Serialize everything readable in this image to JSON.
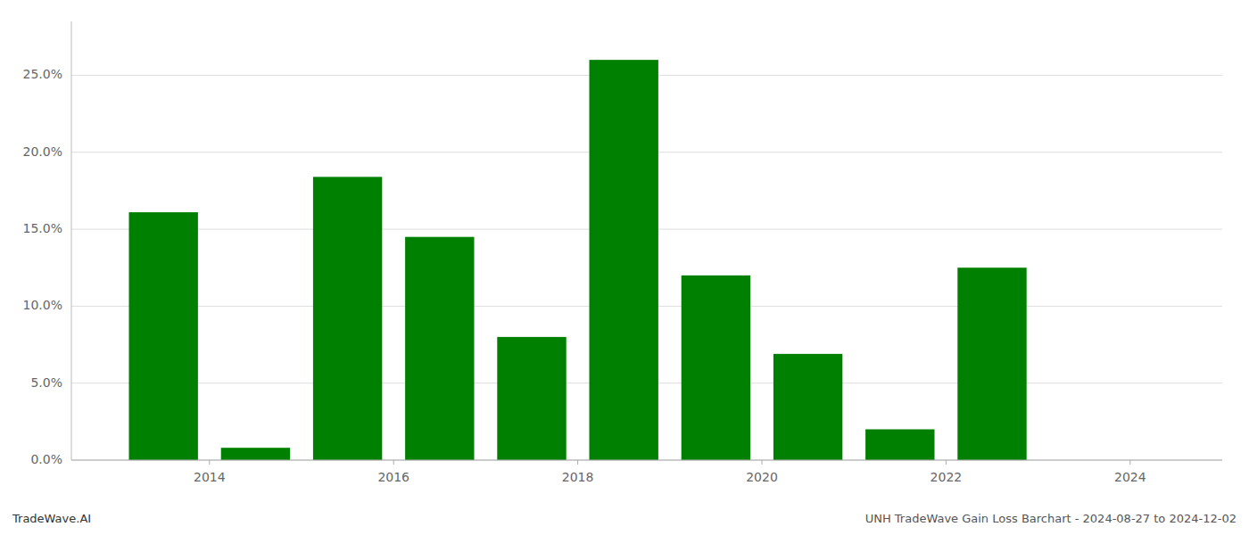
{
  "chart_data": {
    "type": "bar",
    "x": [
      2013.5,
      2014.5,
      2015.5,
      2016.5,
      2017.5,
      2018.5,
      2019.5,
      2020.5,
      2021.5,
      2022.5,
      2023.5
    ],
    "values": [
      0.161,
      0.008,
      0.184,
      0.145,
      0.08,
      0.26,
      0.12,
      0.069,
      0.02,
      0.125,
      0.0
    ],
    "color": "#008000",
    "xlim": [
      2012.5,
      2025.0
    ],
    "ylim": [
      0,
      0.285
    ],
    "xticks": [
      2014,
      2016,
      2018,
      2020,
      2022,
      2024
    ],
    "yticks": [
      {
        "value": 0.0,
        "label": "0.0%"
      },
      {
        "value": 0.05,
        "label": "5.0%"
      },
      {
        "value": 0.1,
        "label": "10.0%"
      },
      {
        "value": 0.15,
        "label": "15.0%"
      },
      {
        "value": 0.2,
        "label": "20.0%"
      },
      {
        "value": 0.25,
        "label": "25.0%"
      }
    ],
    "grid": true,
    "annotations": [
      "TradeWave.AI",
      "UNH TradeWave Gain Loss Barchart - 2024-08-27 to 2024-12-02"
    ]
  }
}
